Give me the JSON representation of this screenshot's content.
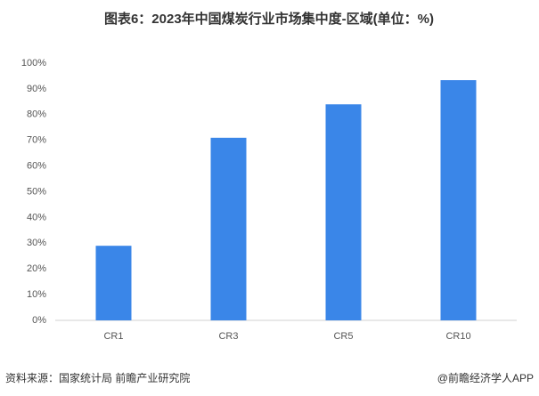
{
  "chart_data": {
    "type": "bar",
    "title": "图表6：2023年中国煤炭行业市场集中度-区域(单位：%)",
    "categories": [
      "CR1",
      "CR3",
      "CR5",
      "CR10"
    ],
    "values": [
      29,
      71,
      84,
      93.4
    ],
    "color": "#3a86e8",
    "ylim": [
      0,
      100
    ],
    "yticks": [
      {
        "value": 0,
        "label": "0%"
      },
      {
        "value": 10,
        "label": "10%"
      },
      {
        "value": 20,
        "label": "20%"
      },
      {
        "value": 30,
        "label": "30%"
      },
      {
        "value": 40,
        "label": "40%"
      },
      {
        "value": 50,
        "label": "50%"
      },
      {
        "value": 60,
        "label": "60%"
      },
      {
        "value": 70,
        "label": "70%"
      },
      {
        "value": 80,
        "label": "80%"
      },
      {
        "value": 90,
        "label": "90%"
      },
      {
        "value": 100,
        "label": "100%"
      }
    ],
    "grid": false,
    "source": "资料来源：国家统计局 前瞻产业研究院",
    "credit": "@前瞻经济学人APP"
  }
}
